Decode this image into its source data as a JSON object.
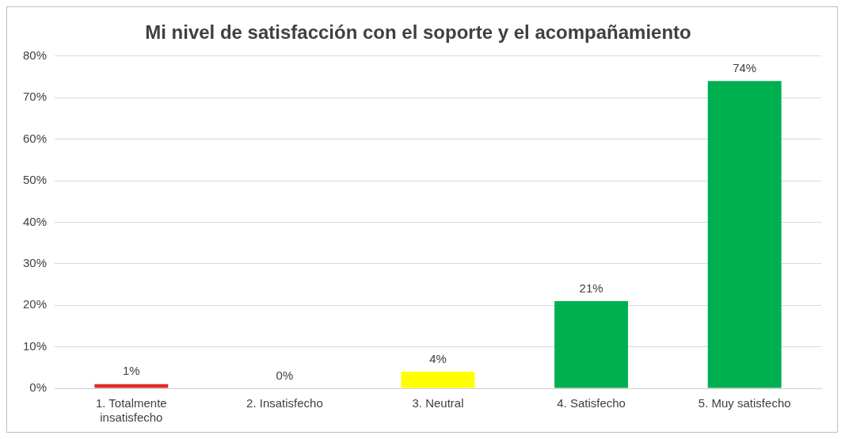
{
  "chart_data": {
    "type": "bar",
    "title": "Mi nivel de satisfacción con el soporte y el acompañamiento",
    "categories": [
      "1. Totalmente insatisfecho",
      "2. Insatisfecho",
      "3. Neutral",
      "4. Satisfecho",
      "5. Muy satisfecho"
    ],
    "values": [
      1,
      0,
      4,
      21,
      74
    ],
    "colors": [
      "#e02a2a",
      "#a0a0a0",
      "#ffff00",
      "#00b050",
      "#00b050"
    ],
    "value_labels": [
      "1%",
      "0%",
      "4%",
      "21%",
      "74%"
    ],
    "ylim": [
      0,
      80
    ],
    "yticks": [
      {
        "value": 0,
        "label": "0%"
      },
      {
        "value": 10,
        "label": "10%"
      },
      {
        "value": 20,
        "label": "20%"
      },
      {
        "value": 30,
        "label": "30%"
      },
      {
        "value": 40,
        "label": "40%"
      },
      {
        "value": 50,
        "label": "50%"
      },
      {
        "value": 60,
        "label": "60%"
      },
      {
        "value": 70,
        "label": "70%"
      },
      {
        "value": 80,
        "label": "80%"
      }
    ],
    "grid": "y",
    "legend": false
  }
}
